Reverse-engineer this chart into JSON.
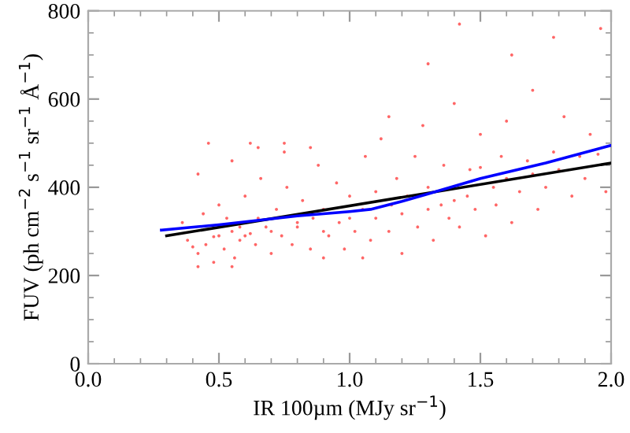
{
  "chart_data": {
    "type": "scatter",
    "xlabel": "IR 100µm (MJy sr$^{−1}$)",
    "ylabel": "FUV (ph cm$^{−2}$ s$^{−1}$ sr$^{−1}$ Å$^{−1}$)",
    "xlim": [
      0,
      2
    ],
    "xticks": [
      {
        "value": 0,
        "label": "0.0"
      },
      {
        "value": 0.5,
        "label": "0.5"
      },
      {
        "value": 1,
        "label": "1.0"
      },
      {
        "value": 1.5,
        "label": "1.5"
      },
      {
        "value": 2,
        "label": "2.0"
      }
    ],
    "ylim": [
      0,
      800
    ],
    "yticks": [
      0,
      200,
      400,
      600,
      800
    ],
    "grid": false,
    "series": [
      {
        "color": "#ff0000",
        "marker": "circle",
        "x": [
          0.36,
          0.38,
          0.4,
          0.42,
          0.42,
          0.44,
          0.45,
          0.46,
          0.48,
          0.5,
          0.5,
          0.52,
          0.53,
          0.55,
          0.55,
          0.56,
          0.58,
          0.58,
          0.6,
          0.6,
          0.62,
          0.62,
          0.64,
          0.65,
          0.66,
          0.68,
          0.7,
          0.7,
          0.72,
          0.74,
          0.75,
          0.76,
          0.78,
          0.8,
          0.8,
          0.82,
          0.85,
          0.86,
          0.88,
          0.9,
          0.9,
          0.92,
          0.95,
          0.96,
          0.98,
          1.0,
          1.0,
          1.02,
          1.05,
          1.06,
          1.08,
          1.1,
          1.1,
          1.12,
          1.15,
          1.16,
          1.18,
          1.2,
          1.2,
          1.22,
          1.25,
          1.26,
          1.28,
          1.3,
          1.3,
          1.32,
          1.35,
          1.36,
          1.38,
          1.4,
          1.4,
          1.42,
          1.45,
          1.46,
          1.48,
          1.5,
          1.5,
          1.52,
          1.55,
          1.56,
          1.58,
          1.6,
          1.6,
          1.62,
          1.65,
          1.68,
          1.7,
          1.7,
          1.72,
          1.75,
          1.78,
          1.8,
          1.82,
          1.85,
          1.88,
          1.9,
          1.92,
          1.95,
          1.98,
          1.3,
          1.42,
          1.62,
          1.78,
          1.96,
          0.42,
          0.48,
          0.55,
          0.65,
          0.75,
          0.85,
          0.9,
          1.05,
          1.15
        ],
        "values": [
          320,
          280,
          265,
          250,
          430,
          340,
          270,
          500,
          288,
          290,
          360,
          260,
          330,
          300,
          460,
          240,
          310,
          280,
          290,
          380,
          295,
          500,
          270,
          330,
          420,
          310,
          250,
          300,
          350,
          290,
          480,
          400,
          270,
          320,
          310,
          370,
          260,
          330,
          450,
          300,
          350,
          290,
          410,
          320,
          260,
          330,
          380,
          300,
          350,
          470,
          280,
          330,
          390,
          510,
          300,
          360,
          420,
          250,
          340,
          380,
          470,
          310,
          540,
          350,
          400,
          280,
          360,
          450,
          330,
          370,
          590,
          310,
          380,
          440,
          350,
          445,
          520,
          290,
          400,
          360,
          470,
          420,
          550,
          320,
          390,
          460,
          430,
          620,
          350,
          400,
          480,
          440,
          560,
          380,
          470,
          420,
          520,
          475,
          390,
          680,
          770,
          700,
          740,
          760,
          220,
          230,
          220,
          490,
          500,
          490,
          240,
          240,
          560
        ]
      },
      {
        "type": "line",
        "color": "#000000",
        "x": [
          0.3,
          2.0
        ],
        "values": [
          290,
          455
        ]
      },
      {
        "type": "line",
        "color": "#0000ff",
        "x": [
          0.28,
          0.5,
          0.8,
          1.0,
          1.08,
          1.2,
          1.3,
          1.5,
          1.75,
          2.0
        ],
        "values": [
          303,
          315,
          335,
          345,
          350,
          368,
          385,
          420,
          455,
          495
        ]
      }
    ]
  }
}
